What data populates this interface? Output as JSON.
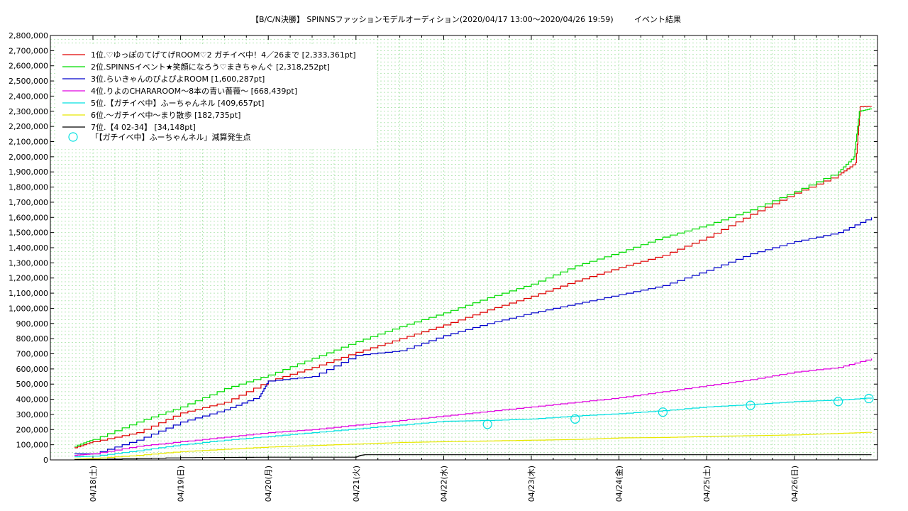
{
  "chart_data": {
    "type": "line",
    "title": "【B/C/N決勝】 SPINNSファッションモデルオーディション(2020/04/17 13:00～2020/04/26 19:59)",
    "subtitle": "イベント結果",
    "ylim": [
      0,
      2800000
    ],
    "y_ticks": [
      "0",
      "100,000",
      "200,000",
      "300,000",
      "400,000",
      "500,000",
      "600,000",
      "700,000",
      "800,000",
      "900,000",
      "1,000,000",
      "1,100,000",
      "1,200,000",
      "1,300,000",
      "1,400,000",
      "1,500,000",
      "1,600,000",
      "1,700,000",
      "1,800,000",
      "1,900,000",
      "2,000,000",
      "2,100,000",
      "2,200,000",
      "2,300,000",
      "2,400,000",
      "2,500,000",
      "2,600,000",
      "2,700,000",
      "2,800,000"
    ],
    "x_ticks": [
      "04/18(土)",
      "04/19(日)",
      "04/20(月)",
      "04/21(火)",
      "04/22(水)",
      "04/23(木)",
      "04/24(金)",
      "04/25(土)",
      "04/26(日)"
    ],
    "x_unit": "days after 04/17 00:00",
    "xlim": [
      0.78,
      9.88
    ],
    "grid": true,
    "legend_position": "top-left",
    "series": [
      {
        "name": "1位.♡ゆっぽのてげてげROOM♡2 ガチイベ中！4／26まで [2,333,361pt]",
        "color": "#e00000",
        "points": [
          [
            0.79,
            80000
          ],
          [
            1.0,
            120000
          ],
          [
            1.5,
            180000
          ],
          [
            2.0,
            310000
          ],
          [
            2.5,
            380000
          ],
          [
            3.0,
            520000
          ],
          [
            3.5,
            610000
          ],
          [
            4.0,
            710000
          ],
          [
            4.5,
            800000
          ],
          [
            5.0,
            890000
          ],
          [
            5.5,
            990000
          ],
          [
            6.0,
            1080000
          ],
          [
            6.5,
            1180000
          ],
          [
            7.0,
            1270000
          ],
          [
            7.5,
            1350000
          ],
          [
            8.0,
            1470000
          ],
          [
            8.5,
            1620000
          ],
          [
            9.0,
            1760000
          ],
          [
            9.5,
            1880000
          ],
          [
            9.7,
            1960000
          ],
          [
            9.75,
            2330000
          ],
          [
            9.88,
            2333361
          ]
        ]
      },
      {
        "name": "2位.SPINNSイベント★笑顔になろう♡まきちゃんぐ [2,318,252pt]",
        "color": "#00dd00",
        "points": [
          [
            0.79,
            90000
          ],
          [
            1.0,
            135000
          ],
          [
            1.5,
            250000
          ],
          [
            2.0,
            350000
          ],
          [
            2.5,
            470000
          ],
          [
            3.0,
            560000
          ],
          [
            3.5,
            670000
          ],
          [
            4.0,
            780000
          ],
          [
            4.5,
            880000
          ],
          [
            5.0,
            970000
          ],
          [
            5.5,
            1070000
          ],
          [
            6.0,
            1160000
          ],
          [
            6.5,
            1280000
          ],
          [
            7.0,
            1370000
          ],
          [
            7.5,
            1470000
          ],
          [
            8.0,
            1550000
          ],
          [
            8.5,
            1650000
          ],
          [
            9.0,
            1770000
          ],
          [
            9.5,
            1900000
          ],
          [
            9.68,
            2000000
          ],
          [
            9.74,
            2300000
          ],
          [
            9.88,
            2318252
          ]
        ]
      },
      {
        "name": "3位.らいきゃんのぴよぴよROOM [1,600,287pt]",
        "color": "#0000cc",
        "points": [
          [
            0.79,
            40000
          ],
          [
            1.0,
            40000
          ],
          [
            1.5,
            130000
          ],
          [
            2.0,
            250000
          ],
          [
            2.5,
            330000
          ],
          [
            2.9,
            420000
          ],
          [
            3.0,
            520000
          ],
          [
            3.5,
            550000
          ],
          [
            4.0,
            690000
          ],
          [
            4.5,
            720000
          ],
          [
            5.0,
            820000
          ],
          [
            5.5,
            900000
          ],
          [
            6.0,
            970000
          ],
          [
            6.5,
            1030000
          ],
          [
            7.0,
            1090000
          ],
          [
            7.5,
            1150000
          ],
          [
            8.0,
            1250000
          ],
          [
            8.5,
            1360000
          ],
          [
            9.0,
            1440000
          ],
          [
            9.5,
            1500000
          ],
          [
            9.88,
            1600287
          ]
        ]
      },
      {
        "name": "4位.りよのCHARAROOM〜8本の青い薔薇〜 [668,439pt]",
        "color": "#e000e0",
        "points": [
          [
            0.79,
            30000
          ],
          [
            1.0,
            40000
          ],
          [
            1.5,
            90000
          ],
          [
            2.0,
            120000
          ],
          [
            2.5,
            150000
          ],
          [
            3.0,
            180000
          ],
          [
            3.5,
            200000
          ],
          [
            4.0,
            230000
          ],
          [
            4.5,
            260000
          ],
          [
            5.0,
            290000
          ],
          [
            5.5,
            320000
          ],
          [
            6.0,
            350000
          ],
          [
            6.5,
            380000
          ],
          [
            7.0,
            410000
          ],
          [
            7.5,
            450000
          ],
          [
            8.0,
            490000
          ],
          [
            8.5,
            530000
          ],
          [
            9.0,
            580000
          ],
          [
            9.5,
            610000
          ],
          [
            9.88,
            668439
          ]
        ]
      },
      {
        "name": "5位.【ガチイベ中】ふーちゃんネル [409,657pt]",
        "color": "#00e0e0",
        "points": [
          [
            0.79,
            20000
          ],
          [
            1.0,
            25000
          ],
          [
            1.5,
            60000
          ],
          [
            2.0,
            100000
          ],
          [
            2.5,
            130000
          ],
          [
            3.0,
            155000
          ],
          [
            3.5,
            180000
          ],
          [
            4.0,
            205000
          ],
          [
            4.5,
            230000
          ],
          [
            5.0,
            255000
          ],
          [
            5.5,
            260000
          ],
          [
            6.0,
            270000
          ],
          [
            6.5,
            290000
          ],
          [
            7.0,
            305000
          ],
          [
            7.5,
            325000
          ],
          [
            8.0,
            350000
          ],
          [
            8.5,
            365000
          ],
          [
            9.0,
            385000
          ],
          [
            9.5,
            395000
          ],
          [
            9.88,
            409657
          ]
        ]
      },
      {
        "name": "6位.〜ガチイベ中〜まり散歩 [182,735pt]",
        "color": "#e8e800",
        "points": [
          [
            0.79,
            5000
          ],
          [
            1.0,
            10000
          ],
          [
            1.5,
            30000
          ],
          [
            2.0,
            55000
          ],
          [
            2.5,
            70000
          ],
          [
            3.0,
            85000
          ],
          [
            3.5,
            95000
          ],
          [
            4.0,
            105000
          ],
          [
            4.5,
            115000
          ],
          [
            5.0,
            120000
          ],
          [
            5.5,
            125000
          ],
          [
            6.0,
            130000
          ],
          [
            6.5,
            135000
          ],
          [
            7.0,
            145000
          ],
          [
            7.5,
            148000
          ],
          [
            8.0,
            155000
          ],
          [
            8.5,
            160000
          ],
          [
            9.0,
            165000
          ],
          [
            9.5,
            175000
          ],
          [
            9.88,
            182735
          ]
        ]
      },
      {
        "name": "7位.【4 02-34】 [34,148pt]",
        "color": "#000000",
        "points": [
          [
            0.79,
            2000
          ],
          [
            1.0,
            3000
          ],
          [
            2.0,
            15000
          ],
          [
            3.0,
            18000
          ],
          [
            4.0,
            18000
          ],
          [
            4.05,
            30000
          ],
          [
            4.1,
            34000
          ],
          [
            5.0,
            34148
          ],
          [
            9.88,
            34148
          ]
        ]
      }
    ],
    "markers": {
      "name": "「【ガチイベ中】ふーちゃんネル」減算発生点",
      "color": "#00e0e0",
      "points": [
        [
          5.5,
          235000
        ],
        [
          6.5,
          270000
        ],
        [
          7.5,
          315000
        ],
        [
          8.5,
          360000
        ],
        [
          9.5,
          385000
        ],
        [
          9.85,
          405000
        ]
      ]
    }
  }
}
